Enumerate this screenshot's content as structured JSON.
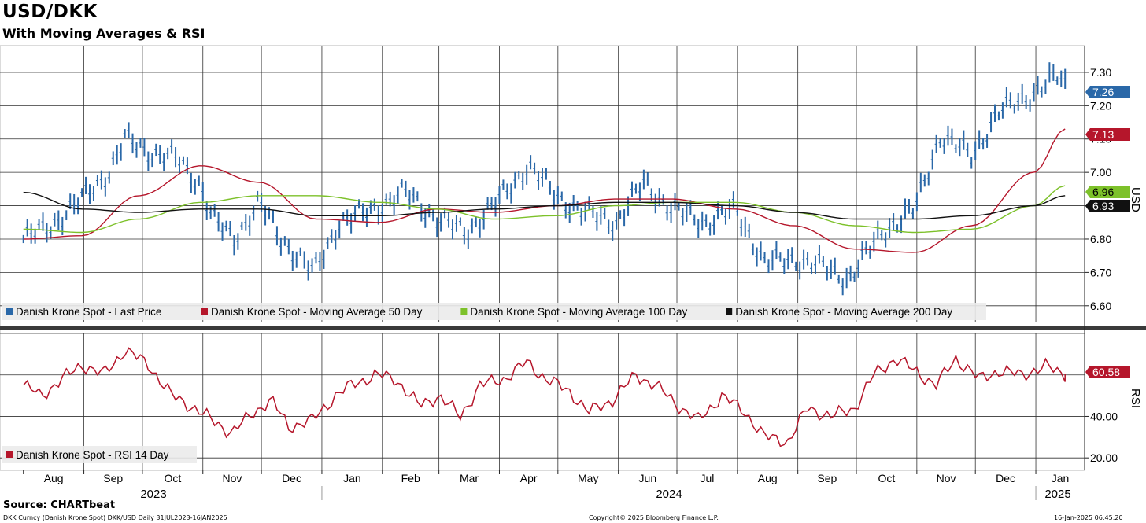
{
  "title": "USD/DKK",
  "subtitle": "With Moving Averages & RSI",
  "source": "Source: CHARTbeat",
  "footer": {
    "left": "DKK Curncy (Danish Krone Spot) DKK/USD  Daily 31JUL2023-16JAN2025",
    "center": "Copyright© 2025 Bloomberg Finance L.P.",
    "right": "16-Jan-2025 06:45:20"
  },
  "colors": {
    "price": "#2a68a8",
    "ma50": "#b5162b",
    "ma100": "#7dc12a",
    "ma200": "#111111",
    "rsi": "#b5162b",
    "grid": "#333333"
  },
  "chart_data": [
    {
      "type": "bar",
      "ylabel": "USD",
      "ylim": [
        6.55,
        7.38
      ],
      "yticks": [
        "7.30",
        "7.20",
        "7.10",
        "7.00",
        "6.90",
        "6.80",
        "6.70",
        "6.60"
      ],
      "grid": true,
      "legend_position": "bottom-left",
      "months": [
        "Aug",
        "Sep",
        "Oct",
        "Nov",
        "Dec",
        "Jan",
        "Feb",
        "Mar",
        "Apr",
        "May",
        "Jun",
        "Jul",
        "Aug",
        "Sep",
        "Oct",
        "Nov",
        "Dec",
        "Jan"
      ],
      "years": [
        "2023",
        "2024",
        "2025"
      ],
      "series": [
        {
          "name": "Danish Krone Spot - Last Price",
          "x": [
            "2023-08-01",
            "2023-08-15",
            "2023-08-31",
            "2023-09-14",
            "2023-09-22",
            "2023-10-05",
            "2023-10-19",
            "2023-10-31",
            "2023-11-06",
            "2023-11-17",
            "2023-11-30",
            "2023-12-11",
            "2023-12-28",
            "2024-01-10",
            "2024-01-24",
            "2024-02-13",
            "2024-02-29",
            "2024-03-15",
            "2024-03-29",
            "2024-04-16",
            "2024-04-30",
            "2024-05-14",
            "2024-05-31",
            "2024-06-14",
            "2024-06-28",
            "2024-07-16",
            "2024-07-31",
            "2024-08-15",
            "2024-08-30",
            "2024-09-13",
            "2024-09-27",
            "2024-10-14",
            "2024-10-31",
            "2024-11-13",
            "2024-11-29",
            "2024-12-13",
            "2024-12-31",
            "2025-01-13",
            "2025-01-16"
          ],
          "values": [
            6.8,
            6.84,
            6.92,
            7.0,
            7.1,
            7.06,
            7.04,
            6.96,
            6.86,
            6.8,
            6.91,
            6.8,
            6.7,
            6.85,
            6.88,
            6.94,
            6.86,
            6.82,
            6.9,
            7.02,
            6.93,
            6.88,
            6.85,
            6.97,
            6.89,
            6.85,
            6.89,
            6.73,
            6.74,
            6.72,
            6.68,
            6.82,
            6.89,
            7.11,
            7.05,
            7.18,
            7.24,
            7.29,
            7.26
          ]
        },
        {
          "name": "Danish Krone Spot - Moving Average 50 Day",
          "x": [
            "2023-08-01",
            "2023-08-31",
            "2023-09-29",
            "2023-10-31",
            "2023-11-30",
            "2023-12-29",
            "2024-01-31",
            "2024-02-29",
            "2024-03-29",
            "2024-04-30",
            "2024-05-31",
            "2024-06-28",
            "2024-07-31",
            "2024-08-30",
            "2024-09-30",
            "2024-10-31",
            "2024-11-29",
            "2024-12-31",
            "2025-01-16"
          ],
          "values": [
            6.8,
            6.81,
            6.93,
            7.02,
            6.97,
            6.86,
            6.85,
            6.89,
            6.88,
            6.9,
            6.92,
            6.92,
            6.89,
            6.84,
            6.77,
            6.76,
            6.84,
            7.0,
            7.13
          ]
        },
        {
          "name": "Danish Krone Spot - Moving Average 100 Day",
          "x": [
            "2023-08-01",
            "2023-08-31",
            "2023-09-29",
            "2023-10-31",
            "2023-11-30",
            "2023-12-29",
            "2024-01-31",
            "2024-02-29",
            "2024-03-29",
            "2024-04-30",
            "2024-05-31",
            "2024-06-28",
            "2024-07-31",
            "2024-08-30",
            "2024-09-30",
            "2024-10-31",
            "2024-11-29",
            "2024-12-31",
            "2025-01-16"
          ],
          "values": [
            6.83,
            6.82,
            6.86,
            6.91,
            6.93,
            6.93,
            6.91,
            6.89,
            6.86,
            6.87,
            6.9,
            6.91,
            6.91,
            6.88,
            6.84,
            6.82,
            6.83,
            6.9,
            6.96
          ]
        },
        {
          "name": "Danish Krone Spot - Moving Average 200 Day",
          "x": [
            "2023-08-01",
            "2023-08-31",
            "2023-09-29",
            "2023-10-31",
            "2023-11-30",
            "2023-12-29",
            "2024-01-31",
            "2024-02-29",
            "2024-03-29",
            "2024-04-30",
            "2024-05-31",
            "2024-06-28",
            "2024-07-31",
            "2024-08-30",
            "2024-09-30",
            "2024-10-31",
            "2024-11-29",
            "2024-12-31",
            "2025-01-16"
          ],
          "values": [
            6.94,
            6.89,
            6.88,
            6.89,
            6.89,
            6.87,
            6.87,
            6.88,
            6.89,
            6.9,
            6.91,
            6.91,
            6.9,
            6.88,
            6.86,
            6.86,
            6.87,
            6.9,
            6.93
          ]
        }
      ],
      "last_values": [
        {
          "series": "Danish Krone Spot - Last Price",
          "label": "7.26",
          "value": 7.26,
          "color": "#2a68a8",
          "text_color": "#ffffff"
        },
        {
          "series": "Danish Krone Spot - Moving Average 50 Day",
          "label": "7.13",
          "value": 7.13,
          "color": "#b5162b",
          "text_color": "#ffffff"
        },
        {
          "series": "Danish Krone Spot - Moving Average 100 Day",
          "label": "6.96",
          "value": 6.96,
          "color": "#7dc12a",
          "text_color": "#000000"
        },
        {
          "series": "Danish Krone Spot - Moving Average 200 Day",
          "label": "6.93",
          "value": 6.93,
          "color": "#111111",
          "text_color": "#ffffff"
        }
      ]
    },
    {
      "type": "line",
      "ylabel": "RSI",
      "ylim": [
        14,
        80
      ],
      "yticks": [
        "40.00",
        "20.00"
      ],
      "grid": true,
      "legend_position": "bottom-left",
      "series": [
        {
          "name": "Danish Krone Spot - RSI 14 Day",
          "x": [
            "2023-08-01",
            "2023-08-10",
            "2023-08-21",
            "2023-08-31",
            "2023-09-11",
            "2023-09-22",
            "2023-10-04",
            "2023-10-16",
            "2023-10-26",
            "2023-11-06",
            "2023-11-16",
            "2023-11-27",
            "2023-12-06",
            "2023-12-15",
            "2023-12-27",
            "2024-01-08",
            "2024-01-18",
            "2024-01-29",
            "2024-02-08",
            "2024-02-20",
            "2024-03-01",
            "2024-03-12",
            "2024-03-22",
            "2024-04-03",
            "2024-04-15",
            "2024-04-25",
            "2024-05-07",
            "2024-05-17",
            "2024-05-29",
            "2024-06-10",
            "2024-06-20",
            "2024-07-02",
            "2024-07-12",
            "2024-07-24",
            "2024-08-05",
            "2024-08-15",
            "2024-08-27",
            "2024-09-06",
            "2024-09-18",
            "2024-09-30",
            "2024-10-10",
            "2024-10-21",
            "2024-10-31",
            "2024-11-11",
            "2024-11-21",
            "2024-12-03",
            "2024-12-13",
            "2024-12-24",
            "2025-01-06",
            "2025-01-16"
          ],
          "values": [
            55,
            50,
            58,
            65,
            60,
            72,
            65,
            50,
            45,
            38,
            32,
            42,
            48,
            35,
            38,
            50,
            56,
            60,
            58,
            45,
            50,
            40,
            55,
            58,
            66,
            58,
            52,
            42,
            48,
            60,
            55,
            45,
            38,
            50,
            42,
            30,
            28,
            44,
            40,
            44,
            60,
            68,
            62,
            55,
            68,
            58,
            62,
            60,
            64,
            60.58
          ]
        }
      ],
      "last_values": [
        {
          "series": "Danish Krone Spot - RSI 14 Day",
          "label": "60.58",
          "value": 60.58,
          "color": "#b5162b",
          "text_color": "#ffffff"
        }
      ]
    }
  ]
}
